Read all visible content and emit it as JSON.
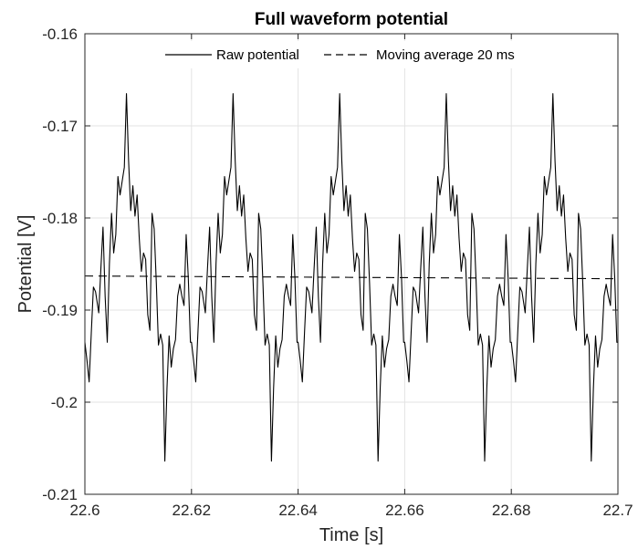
{
  "chart_data": {
    "type": "line",
    "title": "Full waveform potential",
    "xlabel": "Time [s]",
    "ylabel": "Potential [V]",
    "xlim": [
      22.6,
      22.7
    ],
    "ylim": [
      -0.21,
      -0.16
    ],
    "xticks": [
      22.6,
      22.62,
      22.64,
      22.66,
      22.68,
      22.7
    ],
    "xtick_labels": [
      "22.6",
      "22.62",
      "22.64",
      "22.66",
      "22.68",
      "22.7"
    ],
    "yticks": [
      -0.21,
      -0.2,
      -0.19,
      -0.18,
      -0.17,
      -0.16
    ],
    "ytick_labels": [
      "-0.21",
      "-0.2",
      "-0.19",
      "-0.18",
      "-0.17",
      "-0.16"
    ],
    "grid": true,
    "legend": {
      "position": "top",
      "orientation": "horizontal"
    },
    "series": [
      {
        "name": "Raw potential",
        "style": "solid",
        "color": "#000000",
        "period": 0.02,
        "x": [
          0,
          0.0004,
          0.0008,
          0.0012,
          0.0016,
          0.002,
          0.0026,
          0.003,
          0.0034,
          0.0038,
          0.0042,
          0.0046,
          0.005,
          0.0054,
          0.0058,
          0.0062,
          0.0066,
          0.007,
          0.0074,
          0.0078,
          0.0082,
          0.0086,
          0.009,
          0.0094,
          0.0098,
          0.0102,
          0.0106,
          0.011,
          0.0114,
          0.0118,
          0.0122,
          0.0126,
          0.013,
          0.0134,
          0.0138,
          0.0142,
          0.0146,
          0.015,
          0.0154,
          0.0158,
          0.0162,
          0.0166,
          0.017,
          0.0174,
          0.0178,
          0.0182,
          0.0186,
          0.019,
          0.0194,
          0.0198
        ],
        "y": [
          -0.1935,
          -0.1955,
          -0.1978,
          -0.1925,
          -0.1875,
          -0.188,
          -0.1903,
          -0.1855,
          -0.181,
          -0.1885,
          -0.1935,
          -0.185,
          -0.1795,
          -0.1838,
          -0.1818,
          -0.1755,
          -0.1775,
          -0.176,
          -0.1745,
          -0.1665,
          -0.1738,
          -0.1792,
          -0.1765,
          -0.1798,
          -0.1775,
          -0.1822,
          -0.1858,
          -0.1838,
          -0.1845,
          -0.1905,
          -0.1922,
          -0.1795,
          -0.1812,
          -0.187,
          -0.1938,
          -0.1926,
          -0.1938,
          -0.2064,
          -0.1985,
          -0.1928,
          -0.1962,
          -0.1942,
          -0.1932,
          -0.1885,
          -0.1872,
          -0.1885,
          -0.1895,
          -0.1818,
          -0.1865,
          -0.1935
        ]
      },
      {
        "name": "Moving average 20 ms",
        "style": "dashed",
        "color": "#000000",
        "x": [
          22.6,
          22.7
        ],
        "y": [
          -0.1863,
          -0.1866
        ]
      }
    ]
  }
}
